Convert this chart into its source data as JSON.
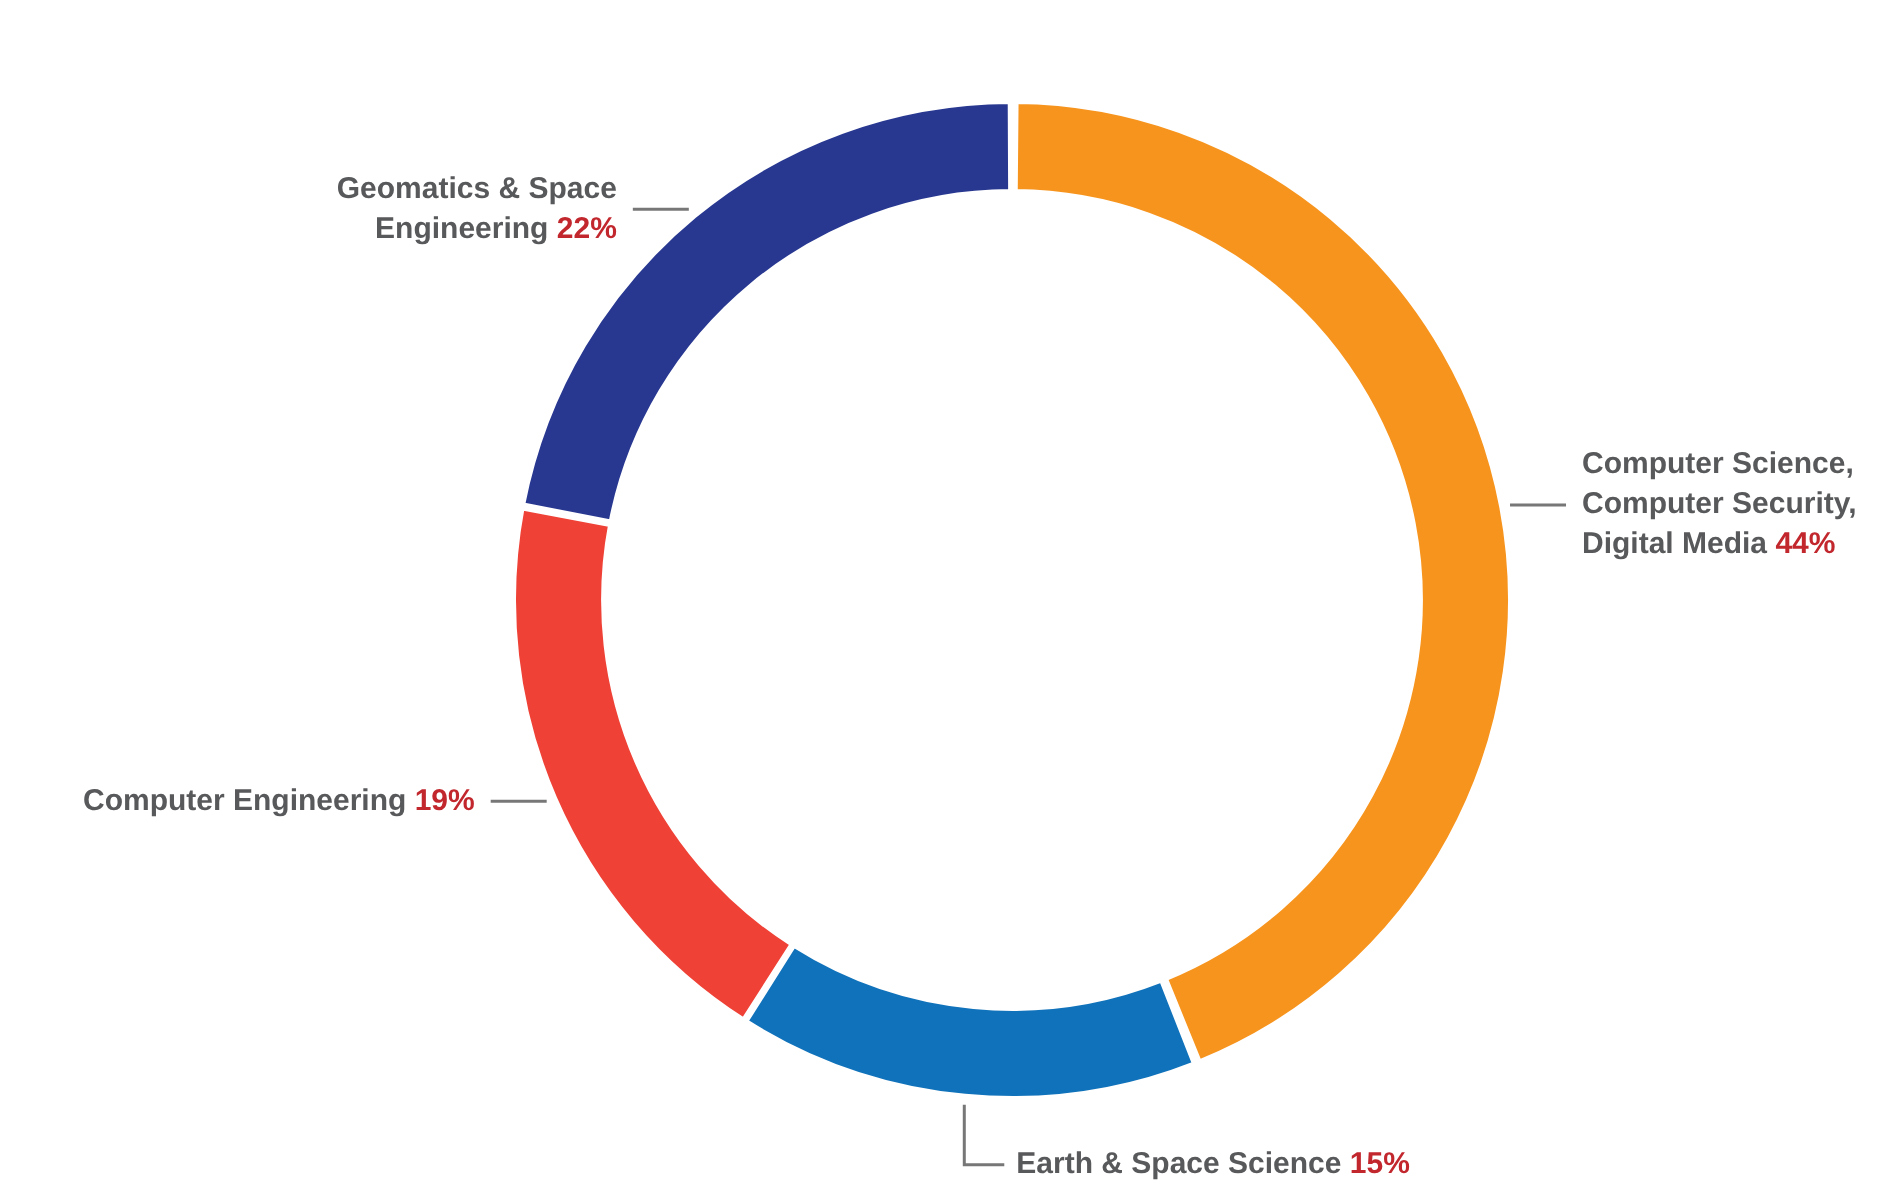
{
  "chart_data": {
    "type": "donut",
    "categories": [
      "Computer Science, Computer Security, Digital Media",
      "Earth & Space Science",
      "Computer Engineering",
      "Geomatics & Space Engineering"
    ],
    "values": [
      44,
      15,
      19,
      22
    ],
    "value_labels": [
      "44%",
      "15%",
      "19%",
      "22%"
    ],
    "colors": [
      "#f7941d",
      "#1072ba",
      "#ef4136",
      "#283891"
    ],
    "legend": false
  }
}
